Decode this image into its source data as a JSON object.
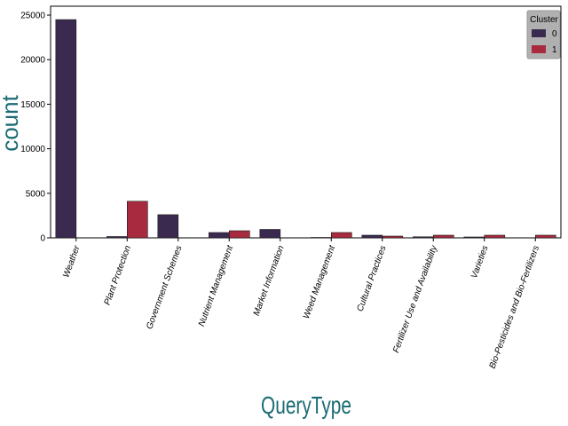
{
  "chart_data": {
    "type": "bar",
    "categories": [
      "Weather",
      "Plant Protection",
      "Government Schemes",
      "Nutrient Management",
      "Market Information",
      "Weed Management",
      "Cultural Practices",
      "Fertilizer Use and Availability",
      "Varieties",
      "Bio-Pesticides and Bio-Fertilizers"
    ],
    "series": [
      {
        "name": "0",
        "color": "#3b2a4f",
        "values": [
          24500,
          150,
          2600,
          600,
          950,
          50,
          300,
          120,
          100,
          0
        ]
      },
      {
        "name": "1",
        "color": "#a82a3e",
        "values": [
          0,
          4100,
          0,
          800,
          0,
          600,
          200,
          300,
          300,
          300
        ]
      }
    ],
    "xlabel": "QueryType",
    "ylabel": "count",
    "ylim": [
      0,
      26000
    ],
    "yticks": [
      0,
      5000,
      10000,
      15000,
      20000,
      25000
    ],
    "ytick_labels": [
      "0",
      "5000",
      "10000",
      "15000",
      "20000",
      "25000"
    ],
    "legend": {
      "title": "Cluster",
      "placement": "top-right",
      "labels": [
        "0",
        "1"
      ]
    },
    "grid": false
  }
}
